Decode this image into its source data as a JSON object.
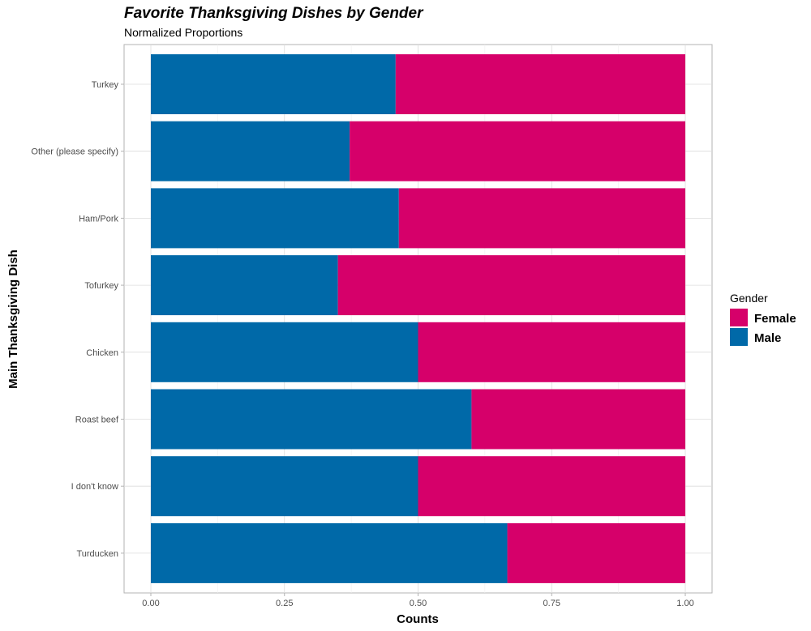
{
  "chart_data": {
    "type": "bar",
    "orientation": "horizontal",
    "stacked": true,
    "title": "Favorite Thanksgiving Dishes by Gender",
    "subtitle": "Normalized Proportions",
    "xlabel": "Counts",
    "ylabel": "Main Thanksgiving Dish",
    "xlim": [
      0,
      1
    ],
    "x_ticks": [
      "0.00",
      "0.25",
      "0.50",
      "0.75",
      "1.00"
    ],
    "x_tick_values": [
      0,
      0.25,
      0.5,
      0.75,
      1
    ],
    "grid": true,
    "categories": [
      "Turkey",
      "Other (please specify)",
      "Ham/Pork",
      "Tofurkey",
      "Chicken",
      "Roast beef",
      "I don't know",
      "Turducken"
    ],
    "series": [
      {
        "name": "Male",
        "color": "#0069A8",
        "values": [
          0.458,
          0.372,
          0.464,
          0.35,
          0.5,
          0.6,
          0.5,
          0.667
        ]
      },
      {
        "name": "Female",
        "color": "#D6006A",
        "values": [
          0.542,
          0.628,
          0.536,
          0.65,
          0.5,
          0.4,
          0.5,
          0.333
        ]
      }
    ],
    "legend": {
      "title": "Gender",
      "position": "right",
      "entries": [
        {
          "name": "Female",
          "color": "#D6006A"
        },
        {
          "name": "Male",
          "color": "#0069A8"
        }
      ]
    }
  }
}
